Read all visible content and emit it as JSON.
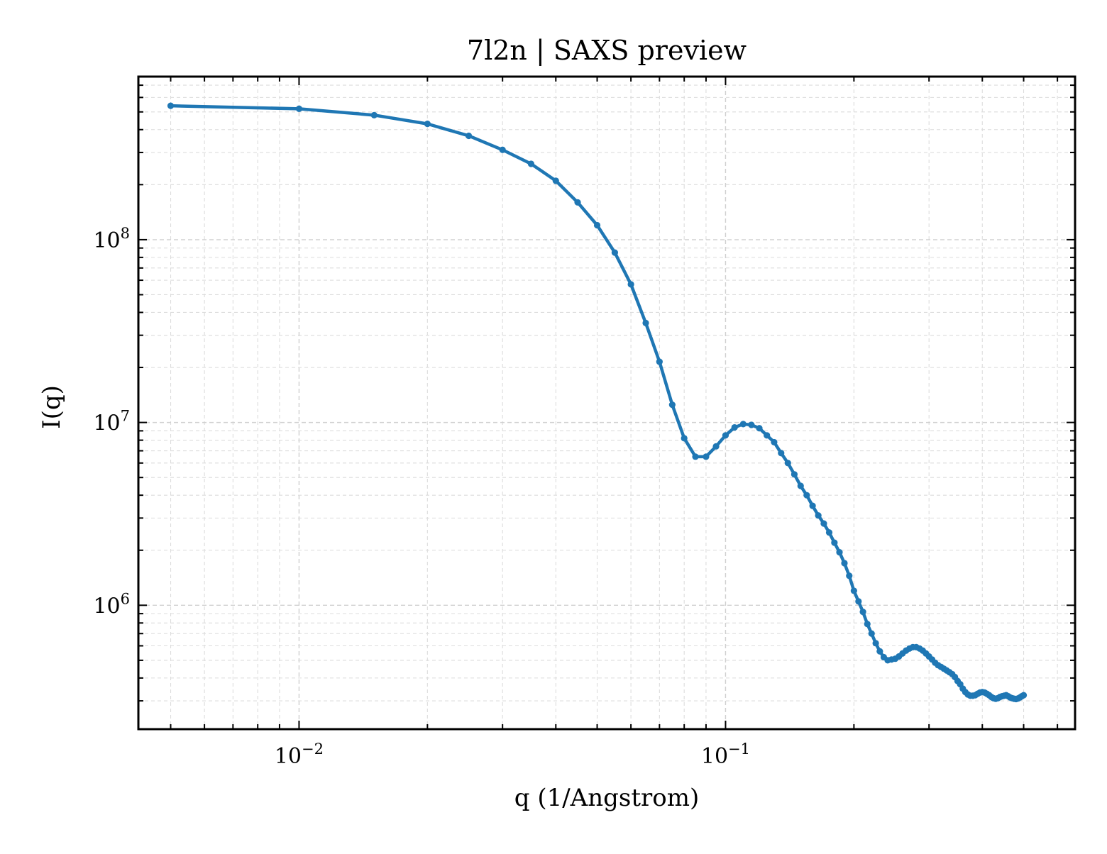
{
  "chart_data": {
    "type": "line",
    "title": "7l2n | SAXS preview",
    "xlabel": "q (1/Angstrom)",
    "ylabel": "I(q)",
    "xscale": "log",
    "yscale": "log",
    "xlim": [
      0.0042,
      0.66
    ],
    "ylim": [
      210000,
      780000000
    ],
    "grid": true,
    "legend": "none",
    "series_color": "#1f77b4",
    "x_ticks": [
      {
        "value": 0.01,
        "base": "10",
        "exp": "−2"
      },
      {
        "value": 0.1,
        "base": "10",
        "exp": "−1"
      }
    ],
    "y_ticks": [
      {
        "value": 1000000,
        "base": "10",
        "exp": "6"
      },
      {
        "value": 10000000,
        "base": "10",
        "exp": "7"
      },
      {
        "value": 100000000,
        "base": "10",
        "exp": "8"
      }
    ],
    "series": [
      {
        "x": [
          0.005,
          0.01,
          0.015,
          0.02,
          0.025,
          0.03,
          0.035,
          0.04,
          0.045,
          0.05,
          0.055,
          0.06,
          0.065,
          0.07,
          0.075,
          0.08,
          0.085,
          0.09,
          0.095,
          0.1,
          0.105,
          0.11,
          0.115,
          0.12,
          0.125,
          0.13,
          0.135,
          0.14,
          0.145,
          0.15,
          0.155,
          0.16,
          0.165,
          0.17,
          0.175,
          0.18,
          0.185,
          0.19,
          0.195,
          0.2,
          0.205,
          0.21,
          0.215,
          0.22,
          0.225,
          0.23,
          0.235,
          0.24,
          0.245,
          0.25,
          0.255,
          0.26,
          0.265,
          0.27,
          0.275,
          0.28,
          0.285,
          0.29,
          0.295,
          0.3,
          0.305,
          0.31,
          0.315,
          0.32,
          0.325,
          0.33,
          0.335,
          0.34,
          0.345,
          0.35,
          0.355,
          0.36,
          0.365,
          0.37,
          0.375,
          0.38,
          0.385,
          0.39,
          0.395,
          0.4,
          0.405,
          0.41,
          0.415,
          0.42,
          0.425,
          0.43,
          0.435,
          0.44,
          0.445,
          0.45,
          0.455,
          0.46,
          0.465,
          0.47,
          0.475,
          0.48,
          0.485,
          0.49,
          0.495,
          0.5
        ],
        "y": [
          540000000,
          520000000,
          480000000,
          430000000,
          370000000,
          310000000,
          260000000,
          210000000,
          160000000,
          120000000,
          85000000,
          57000000,
          35000000,
          21500000,
          12500000,
          8200000,
          6500000,
          6500000,
          7400000,
          8500000,
          9400000,
          9800000,
          9700000,
          9300000,
          8500000,
          7800000,
          6800000,
          6000000,
          5200000,
          4500000,
          4000000,
          3500000,
          3100000,
          2800000,
          2500000,
          2200000,
          1950000,
          1700000,
          1450000,
          1200000,
          1050000,
          920000,
          790000,
          700000,
          620000,
          560000,
          520000,
          500000,
          505000,
          510000,
          525000,
          545000,
          565000,
          580000,
          590000,
          590000,
          580000,
          565000,
          545000,
          525000,
          505000,
          485000,
          470000,
          460000,
          450000,
          440000,
          430000,
          420000,
          405000,
          385000,
          370000,
          350000,
          335000,
          325000,
          320000,
          320000,
          322000,
          328000,
          333000,
          335000,
          333000,
          328000,
          322000,
          315000,
          310000,
          308000,
          310000,
          315000,
          318000,
          320000,
          322000,
          318000,
          313000,
          310000,
          308000,
          307000,
          309000,
          313000,
          318000,
          322000
        ]
      }
    ]
  }
}
